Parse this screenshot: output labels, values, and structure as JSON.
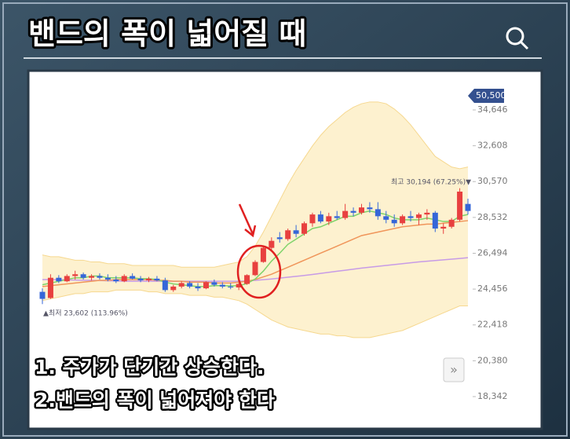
{
  "header": {
    "title": "밴드의 폭이 넓어질 때"
  },
  "chart_data": {
    "type": "candlestick",
    "price_tag": "50,500",
    "high_label": "최고 30,194 (67.25%)▼",
    "low_label": "▲최저 23,602 (113.96%)",
    "ylim": [
      17672,
      36432
    ],
    "yticks": [
      {
        "value": 18342,
        "label": "18,342"
      },
      {
        "value": 20380,
        "label": "20,380"
      },
      {
        "value": 22418,
        "label": "22,418"
      },
      {
        "value": 24456,
        "label": "24,456"
      },
      {
        "value": 26494,
        "label": "26,494"
      },
      {
        "value": 28532,
        "label": "28,532"
      },
      {
        "value": 30570,
        "label": "30,570"
      },
      {
        "value": 32608,
        "label": "32,608"
      },
      {
        "value": 34646,
        "label": "34,646"
      }
    ],
    "up_color": "#e8403f",
    "down_color": "#3566d8",
    "open": [
      24300,
      23950,
      25100,
      24900,
      25200,
      25300,
      25100,
      25200,
      25100,
      25000,
      24900,
      25200,
      25050,
      24950,
      25050,
      24950,
      24400,
      24600,
      24800,
      24600,
      24500,
      24850,
      24700,
      24600,
      24550,
      24750,
      25250,
      26000,
      26800,
      27400,
      27300,
      27800,
      27600,
      28200,
      28700,
      28300,
      28600,
      28500,
      28900,
      28800,
      29100,
      29000,
      28600,
      28400,
      28200,
      28600,
      28500,
      28700,
      28800,
      27900,
      28000,
      28400,
      29300
    ],
    "high": [
      24500,
      25300,
      25250,
      25300,
      25500,
      25400,
      25300,
      25350,
      25300,
      25200,
      25300,
      25350,
      25200,
      25150,
      25200,
      25100,
      24700,
      24900,
      24900,
      24800,
      24900,
      25000,
      24850,
      24800,
      24800,
      25300,
      26100,
      26900,
      27400,
      27700,
      27900,
      28100,
      28300,
      28800,
      28900,
      28800,
      28900,
      29300,
      29100,
      29300,
      29400,
      29400,
      28900,
      28700,
      28700,
      28900,
      28800,
      29000,
      28900,
      28200,
      28500,
      30194,
      29600
    ],
    "low": [
      23602,
      23900,
      24800,
      24850,
      25000,
      25000,
      24950,
      25000,
      24900,
      24800,
      24850,
      25000,
      24850,
      24850,
      24900,
      24300,
      24300,
      24500,
      24500,
      24350,
      24450,
      24600,
      24500,
      24450,
      24400,
      24700,
      25200,
      25950,
      26700,
      27100,
      27200,
      27400,
      27500,
      28000,
      28200,
      28100,
      28400,
      28400,
      28600,
      28700,
      28800,
      28400,
      28200,
      28000,
      28100,
      28300,
      28100,
      28400,
      27700,
      27600,
      27900,
      28300,
      28700
    ],
    "close": [
      23900,
      25100,
      24900,
      25200,
      25300,
      25100,
      25200,
      25100,
      25000,
      24900,
      25200,
      25050,
      24950,
      25050,
      24950,
      24400,
      24600,
      24800,
      24600,
      24500,
      24850,
      24700,
      24600,
      24550,
      24750,
      25250,
      26000,
      26800,
      27200,
      27300,
      27800,
      27600,
      28200,
      28700,
      28300,
      28600,
      28500,
      28900,
      28800,
      29100,
      29000,
      28600,
      28400,
      28200,
      28600,
      28500,
      28700,
      28800,
      27900,
      28000,
      28400,
      30000,
      28900
    ],
    "band": {
      "color": "#fdf1cf",
      "edge": "#f6d88f",
      "upper": [
        26400,
        26300,
        26300,
        26200,
        26100,
        26100,
        26000,
        26000,
        25900,
        25900,
        25900,
        25800,
        25800,
        25800,
        25800,
        25800,
        25800,
        25700,
        25700,
        25700,
        25700,
        25700,
        25800,
        25900,
        26000,
        26300,
        26900,
        27700,
        28600,
        29500,
        30400,
        31200,
        31900,
        32600,
        33200,
        33700,
        34100,
        34500,
        34800,
        35000,
        35100,
        35100,
        35000,
        34700,
        34300,
        33800,
        33200,
        32600,
        32000,
        31700,
        31400,
        31300,
        31400
      ],
      "lower": [
        23800,
        23900,
        24000,
        24100,
        24200,
        24200,
        24300,
        24300,
        24300,
        24400,
        24400,
        24400,
        24400,
        24300,
        24300,
        24200,
        24200,
        24200,
        24100,
        24100,
        24100,
        24000,
        24000,
        23900,
        23800,
        23600,
        23300,
        23000,
        22700,
        22500,
        22300,
        22200,
        22100,
        22000,
        21900,
        21900,
        21800,
        21800,
        21700,
        21700,
        21700,
        21800,
        21900,
        22000,
        22100,
        22300,
        22500,
        22700,
        22900,
        23100,
        23300,
        23500,
        23500
      ]
    },
    "series": [
      {
        "color": "#c79be6",
        "values": [
          25000,
          25000,
          24990,
          24980,
          24970,
          24960,
          24950,
          24940,
          24930,
          24920,
          24910,
          24900,
          24900,
          24900,
          24900,
          24900,
          24900,
          24900,
          24900,
          24900,
          24900,
          24900,
          24900,
          24900,
          24900,
          24920,
          24950,
          24990,
          25030,
          25080,
          25130,
          25180,
          25230,
          25290,
          25350,
          25410,
          25470,
          25530,
          25590,
          25650,
          25700,
          25750,
          25800,
          25850,
          25900,
          25950,
          26000,
          26040,
          26080,
          26120,
          26160,
          26200,
          26240
        ]
      },
      {
        "color": "#f0955a",
        "values": [
          24600,
          24650,
          24700,
          24750,
          24800,
          24850,
          24900,
          24950,
          24950,
          25000,
          25000,
          25000,
          25000,
          25000,
          24950,
          24950,
          24900,
          24900,
          24850,
          24850,
          24850,
          24800,
          24800,
          24800,
          24850,
          24900,
          25000,
          25150,
          25300,
          25500,
          25700,
          25900,
          26100,
          26300,
          26500,
          26700,
          26900,
          27100,
          27300,
          27500,
          27600,
          27700,
          27800,
          27900,
          28000,
          28050,
          28100,
          28150,
          28150,
          28200,
          28250,
          28300,
          28350
        ]
      },
      {
        "color": "#7fd36a",
        "values": [
          24700,
          24800,
          24900,
          25000,
          25100,
          25100,
          25200,
          25200,
          25100,
          25100,
          25100,
          25100,
          25050,
          25050,
          25000,
          24850,
          24750,
          24700,
          24650,
          24600,
          24600,
          24650,
          24650,
          24640,
          24650,
          24770,
          25030,
          25480,
          26050,
          26500,
          27000,
          27300,
          27600,
          27900,
          28000,
          28200,
          28400,
          28600,
          28600,
          28800,
          28900,
          28800,
          28700,
          28500,
          28400,
          28400,
          28400,
          28500,
          28400,
          28300,
          28300,
          28600,
          28700
        ]
      }
    ]
  },
  "overlay": {
    "lines": [
      "1. 주가가 단기간 상승한다.",
      "2.밴드의 폭이 넓어져야 한다"
    ]
  }
}
